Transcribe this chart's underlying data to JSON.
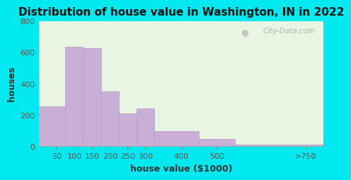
{
  "title": "Distribution of house value in Washington, IN in 2022",
  "xlabel": "house value ($1000)",
  "ylabel": "houses",
  "categories": [
    "50",
    "100",
    "150",
    "200",
    "250",
    "300",
    "400",
    "500",
    ">750"
  ],
  "values": [
    255,
    635,
    625,
    350,
    210,
    240,
    95,
    47,
    10
  ],
  "bin_edges": [
    0,
    75,
    125,
    175,
    225,
    275,
    325,
    450,
    550,
    800
  ],
  "tick_positions": [
    50,
    100,
    150,
    200,
    250,
    300,
    400,
    500,
    750
  ],
  "bar_color": "#c9aed6",
  "bar_edge_color": "#b898cc",
  "background_color": "#e8f5e2",
  "outer_background": "#00e8f0",
  "ylim": [
    0,
    800
  ],
  "yticks": [
    0,
    200,
    400,
    600,
    800
  ],
  "title_fontsize": 11,
  "axis_label_fontsize": 9,
  "tick_fontsize": 8,
  "watermark_text": "City-Data.com"
}
